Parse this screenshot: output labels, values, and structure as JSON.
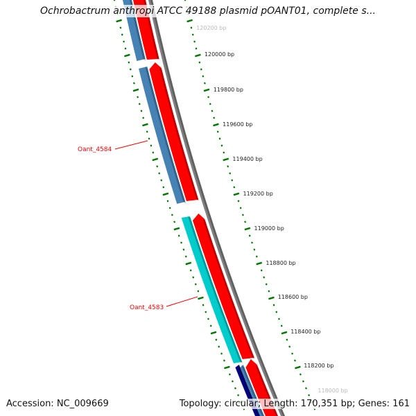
{
  "title": "Ochrobactrum anthropi ATCC 49188 plasmid pOANT01, complete s...",
  "footer": {
    "accession": "Accession: NC_009669",
    "topology": "Topology: circular; Length: 170,351 bp; Genes: 161"
  },
  "gene_labels": [
    {
      "name": "Oant_4584",
      "color": "#ff0000"
    },
    {
      "name": "Oant_4583",
      "color": "#ff0000"
    }
  ],
  "tick_labels": [
    "120200 bp",
    "120000 bp",
    "119800 bp",
    "119600 bp",
    "119400 bp",
    "119200 bp",
    "119000 bp",
    "118800 bp",
    "118600 bp",
    "118400 bp",
    "118200 bp",
    "118000 bp"
  ],
  "colors": {
    "forward": "#ff0000",
    "reverse": "#4682b4",
    "cyan": "#00cccc",
    "navy": "#000080",
    "backbone": "#808080",
    "ticks": "#007700"
  }
}
